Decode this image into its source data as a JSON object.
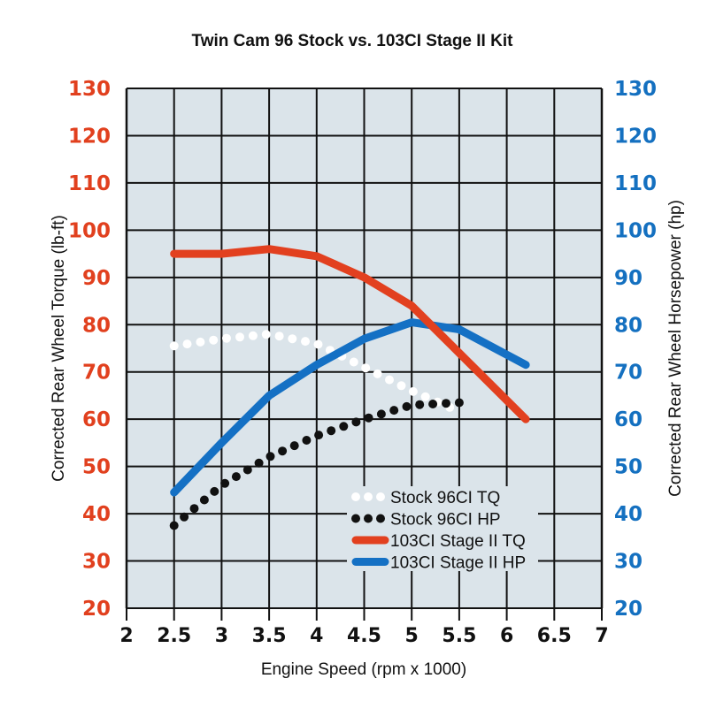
{
  "chart_data": {
    "type": "line",
    "title": "Twin Cam 96 Stock vs. 103CI Stage II Kit",
    "xlabel": "Engine Speed (rpm x 1000)",
    "ylabel_left": "Corrected Rear Wheel Torque (lb-ft)",
    "ylabel_right": "Corrected Rear Wheel Horsepower (hp)",
    "xlim": [
      2,
      7
    ],
    "ylim": [
      20,
      130
    ],
    "x_ticks": [
      "2",
      "2.5",
      "3",
      "3.5",
      "4",
      "4.5",
      "5",
      "5.5",
      "6",
      "6.5",
      "7"
    ],
    "y_ticks_left": [
      "130",
      "120",
      "110",
      "100",
      "90",
      "80",
      "70",
      "60",
      "50",
      "40",
      "30",
      "20"
    ],
    "y_ticks_right": [
      "130",
      "120",
      "110",
      "100",
      "90",
      "80",
      "70",
      "60",
      "50",
      "40",
      "30",
      "20"
    ],
    "grid": true,
    "legend_position": "bottom-right",
    "series": [
      {
        "name": "Stock 96CI TQ",
        "style": "dotted",
        "color": "#ffffff",
        "x": [
          2.5,
          3,
          3.5,
          4,
          4.5,
          5,
          5.4
        ],
        "y": [
          75.5,
          77,
          78,
          76,
          71,
          66,
          62.5
        ]
      },
      {
        "name": "Stock 96CI HP",
        "style": "dotted",
        "color": "#111111",
        "x": [
          2.5,
          3,
          3.5,
          4,
          4.5,
          5,
          5.5
        ],
        "y": [
          37.5,
          46,
          52,
          56.5,
          60,
          63,
          63.5
        ]
      },
      {
        "name": "103CI Stage II TQ",
        "style": "solid",
        "color": "#e2401f",
        "x": [
          2.5,
          3,
          3.5,
          4,
          4.5,
          5,
          5.5,
          6.2
        ],
        "y": [
          95,
          95,
          96,
          94.5,
          90,
          84,
          74,
          60
        ]
      },
      {
        "name": "103CI Stage II HP",
        "style": "solid",
        "color": "#1470c4",
        "x": [
          2.5,
          3,
          3.5,
          4,
          4.5,
          5,
          5.5,
          6.2
        ],
        "y": [
          44.5,
          55,
          65,
          71.5,
          77,
          80.5,
          79,
          71.5
        ]
      }
    ]
  }
}
